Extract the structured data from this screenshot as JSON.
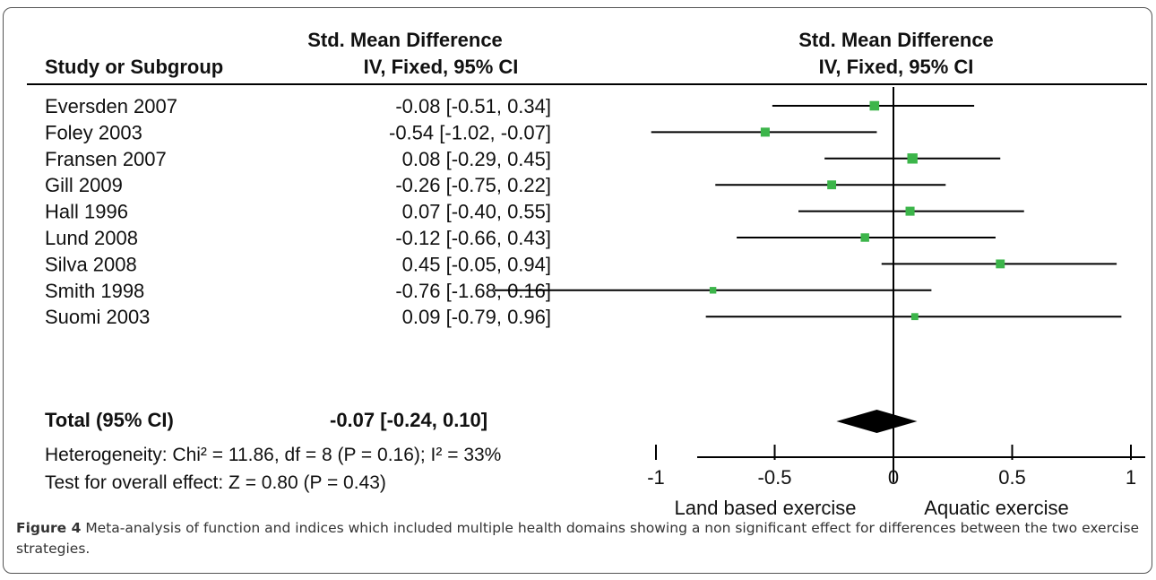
{
  "header": {
    "col1": "Study or Subgroup",
    "col2_line1": "Std. Mean Difference",
    "col2_line2": "IV, Fixed, 95% CI",
    "col3_line1": "Std. Mean Difference",
    "col3_line2": "IV, Fixed, 95% CI"
  },
  "total": {
    "label": "Total (95% CI)",
    "ci_text": "-0.07 [-0.24, 0.10]"
  },
  "heterogeneity": "Heterogeneity: Chi² = 11.86, df = 8 (P = 0.16); I² = 33%",
  "overall_effect": "Test for overall effect: Z = 0.80 (P = 0.43)",
  "caption": {
    "label": "Figure 4",
    "text": "Meta-analysis of function and indices which included multiple health domains showing a non significant effect for differences between the two exercise strategies",
    "end": "."
  },
  "colors": {
    "marker": "#3cb54a",
    "line": "#000000"
  },
  "chart_data": {
    "type": "forest",
    "studies": [
      {
        "name": "Eversden 2007",
        "ci_text": "-0.08 [-0.51, 0.34]",
        "estimate": -0.08,
        "lower": -0.51,
        "upper": 0.34,
        "weight": 0.16
      },
      {
        "name": "Foley 2003",
        "ci_text": "-0.54 [-1.02, -0.07]",
        "estimate": -0.54,
        "lower": -1.02,
        "upper": -0.07,
        "weight": 0.13
      },
      {
        "name": "Fransen 2007",
        "ci_text": "0.08 [-0.29, 0.45]",
        "estimate": 0.08,
        "lower": -0.29,
        "upper": 0.45,
        "weight": 0.21
      },
      {
        "name": "Gill 2009",
        "ci_text": "-0.26 [-0.75, 0.22]",
        "estimate": -0.26,
        "lower": -0.75,
        "upper": 0.22,
        "weight": 0.12
      },
      {
        "name": "Hall 1996",
        "ci_text": "0.07 [-0.40, 0.55]",
        "estimate": 0.07,
        "lower": -0.4,
        "upper": 0.55,
        "weight": 0.13
      },
      {
        "name": "Lund 2008",
        "ci_text": "-0.12 [-0.66, 0.43]",
        "estimate": -0.12,
        "lower": -0.66,
        "upper": 0.43,
        "weight": 0.1
      },
      {
        "name": "Silva 2008",
        "ci_text": "0.45 [-0.05, 0.94]",
        "estimate": 0.45,
        "lower": -0.05,
        "upper": 0.94,
        "weight": 0.12
      },
      {
        "name": "Smith 1998",
        "ci_text": "-0.76 [-1.68, 0.16]",
        "estimate": -0.76,
        "lower": -1.68,
        "upper": 0.16,
        "weight": 0.03
      },
      {
        "name": "Suomi 2003",
        "ci_text": "0.09 [-0.79, 0.96]",
        "estimate": 0.09,
        "lower": -0.79,
        "upper": 0.96,
        "weight": 0.04
      }
    ],
    "pooled": {
      "estimate": -0.07,
      "lower": -0.24,
      "upper": 0.1
    },
    "xlim": [
      -2,
      2
    ],
    "ticks": [
      -1,
      -0.5,
      0,
      0.5,
      1
    ],
    "tick_labels": [
      "-1",
      "-0.5",
      "0",
      "0.5",
      "1"
    ],
    "favours_left": "Land based exercise",
    "favours_right": "Aquatic exercise"
  }
}
